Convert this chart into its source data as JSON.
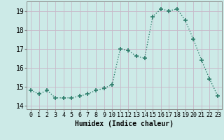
{
  "x": [
    0,
    1,
    2,
    3,
    4,
    5,
    6,
    7,
    8,
    9,
    10,
    11,
    12,
    13,
    14,
    15,
    16,
    17,
    18,
    19,
    20,
    21,
    22,
    23
  ],
  "y": [
    14.8,
    14.6,
    14.8,
    14.4,
    14.4,
    14.4,
    14.5,
    14.6,
    14.8,
    14.9,
    15.1,
    17.0,
    16.9,
    16.6,
    16.5,
    18.7,
    19.1,
    19.0,
    19.1,
    18.5,
    17.5,
    16.4,
    15.4,
    14.5
  ],
  "line_color": "#2d7d6b",
  "marker": "+",
  "markersize": 4,
  "linewidth": 1.0,
  "bg_color": "#cceae7",
  "grid_color_major": "#c0b8c8",
  "grid_color_minor": "#d8eae8",
  "xlabel": "Humidex (Indice chaleur)",
  "xlim": [
    -0.5,
    23.5
  ],
  "ylim": [
    13.8,
    19.5
  ],
  "yticks": [
    14,
    15,
    16,
    17,
    18,
    19
  ],
  "xticks": [
    0,
    1,
    2,
    3,
    4,
    5,
    6,
    7,
    8,
    9,
    10,
    11,
    12,
    13,
    14,
    15,
    16,
    17,
    18,
    19,
    20,
    21,
    22,
    23
  ],
  "tick_labelsize": 6,
  "xlabel_fontsize": 7,
  "spine_color": "#888888"
}
